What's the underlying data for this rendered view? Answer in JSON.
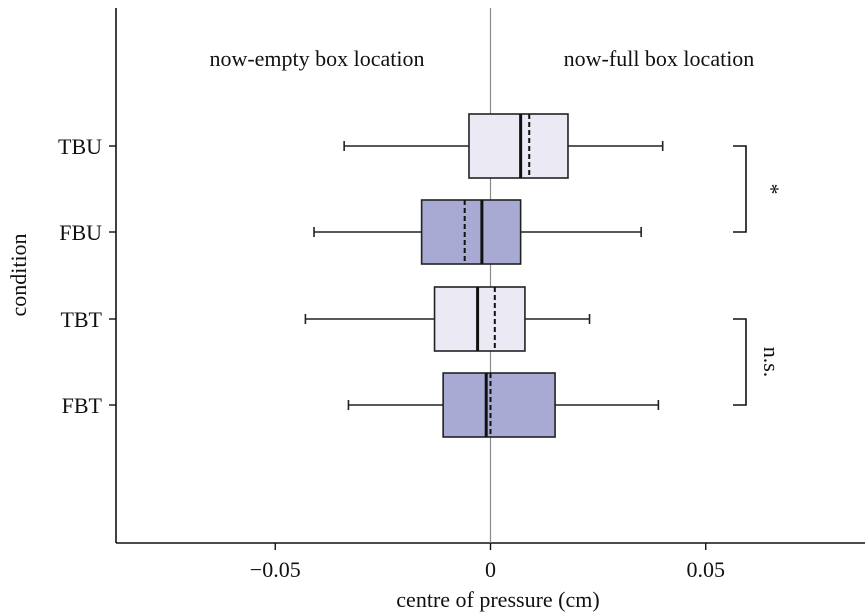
{
  "chart_data": {
    "type": "boxplot",
    "orientation": "horizontal",
    "xlabel": "centre of pressure (cm)",
    "ylabel": "condition",
    "xlim": [
      -0.087,
      0.087
    ],
    "x_ticks": [
      {
        "value": -0.05,
        "label": "−0.05"
      },
      {
        "value": 0,
        "label": "0"
      },
      {
        "value": 0.05,
        "label": "0.05"
      }
    ],
    "reference_line_x": 0,
    "region_labels": {
      "left": "now-empty box location",
      "right": "now-full box location"
    },
    "categories": [
      {
        "label": "TBU",
        "min": -0.034,
        "q1": -0.005,
        "median": 0.007,
        "mean": 0.009,
        "q3": 0.018,
        "max": 0.04,
        "fill": "#ebe9f3"
      },
      {
        "label": "FBU",
        "min": -0.041,
        "q1": -0.016,
        "median": -0.002,
        "mean": -0.006,
        "q3": 0.007,
        "max": 0.035,
        "fill": "#a9aad4"
      },
      {
        "label": "TBT",
        "min": -0.043,
        "q1": -0.013,
        "median": -0.003,
        "mean": 0.001,
        "q3": 0.008,
        "max": 0.023,
        "fill": "#ebe9f3"
      },
      {
        "label": "FBT",
        "min": -0.033,
        "q1": -0.011,
        "median": -0.001,
        "mean": 0.0,
        "q3": 0.015,
        "max": 0.039,
        "fill": "#a9aad4"
      }
    ],
    "significance": [
      {
        "between": [
          "TBU",
          "FBU"
        ],
        "label": "*"
      },
      {
        "between": [
          "TBT",
          "FBT"
        ],
        "label": "n.s."
      }
    ]
  }
}
